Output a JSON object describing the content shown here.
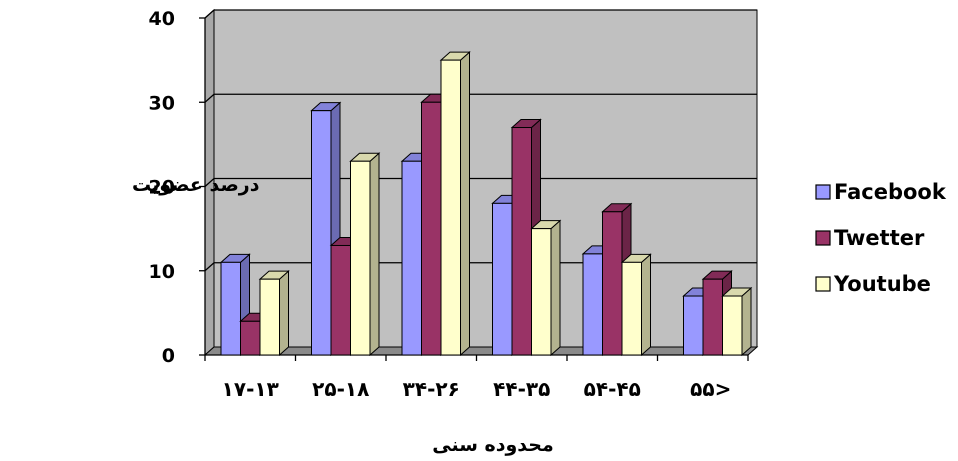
{
  "chart_data": {
    "type": "bar",
    "categories": [
      "۱۷-۱۳",
      "۲۵-۱۸",
      "۳۴-۲۶",
      "۴۴-۳۵",
      "۵۴-۴۵",
      "۵۵>"
    ],
    "series": [
      {
        "name": "Facebook",
        "values": [
          11,
          29,
          23,
          18,
          12,
          7
        ],
        "color": "#9999ff"
      },
      {
        "name": "Twetter",
        "values": [
          4,
          13,
          30,
          27,
          17,
          9
        ],
        "color": "#993366"
      },
      {
        "name": "Youtube",
        "values": [
          9,
          23,
          35,
          15,
          11,
          7
        ],
        "color": "#ffffcc"
      }
    ],
    "xlabel": "محدوده سنی",
    "ylabel": "درصد عضویت",
    "ylim": [
      0,
      40
    ],
    "yticks": [
      0,
      10,
      20,
      30,
      40
    ],
    "grid": true,
    "plot_background": "#c0c0c0",
    "legend_position": "right",
    "bar_style": "3d"
  }
}
